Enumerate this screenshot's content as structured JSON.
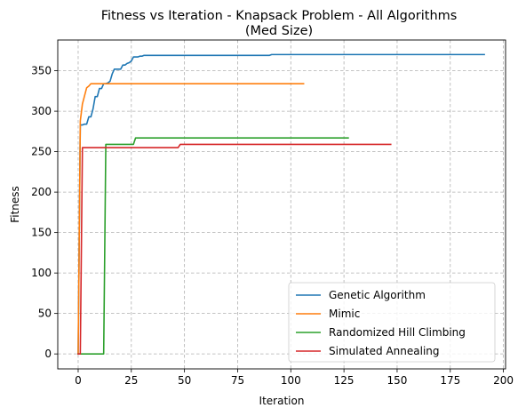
{
  "chart_data": {
    "type": "line",
    "title_line1": "Fitness vs Iteration - Knapsack Problem - All Algorithms",
    "title_line2": "(Med Size)",
    "xlabel": "Iteration",
    "ylabel": "Fitness",
    "xlim": [
      -9.6,
      201
    ],
    "ylim": [
      -18.5,
      388
    ],
    "xticks": [
      0,
      25,
      50,
      75,
      100,
      125,
      150,
      175,
      200
    ],
    "yticks": [
      0,
      50,
      100,
      150,
      200,
      250,
      300,
      350
    ],
    "grid": true,
    "legend_position": "lower-right",
    "series": [
      {
        "name": "Genetic Algorithm",
        "color": "#1f77b4",
        "x": [
          0,
          1,
          2,
          3,
          4,
          5,
          6,
          7,
          8,
          9,
          10,
          11,
          12,
          13,
          14,
          15,
          16,
          17,
          18,
          19,
          20,
          21,
          22,
          23,
          24,
          25,
          26,
          27,
          28,
          29,
          30,
          31,
          32,
          33,
          90,
          91,
          191
        ],
        "y": [
          0,
          283,
          283,
          284,
          284,
          293,
          293,
          303,
          318,
          318,
          328,
          328,
          334,
          334,
          335,
          337,
          346,
          352,
          352,
          352,
          352,
          357,
          357,
          359,
          360,
          362,
          367,
          367,
          367,
          368,
          368,
          369,
          369,
          369,
          369,
          370,
          370
        ]
      },
      {
        "name": "Mimic",
        "color": "#ff7f0e",
        "x": [
          0,
          1,
          2,
          3,
          4,
          5,
          6,
          7,
          106
        ],
        "y": [
          0,
          288,
          309,
          319,
          329,
          331,
          334,
          334,
          334
        ]
      },
      {
        "name": "Randomized Hill Climbing",
        "color": "#2ca02c",
        "x": [
          0,
          12,
          13,
          26,
          27,
          127
        ],
        "y": [
          0,
          0,
          259,
          259,
          267,
          267
        ]
      },
      {
        "name": "Simulated Annealing",
        "color": "#d62728",
        "x": [
          0,
          1,
          2,
          3,
          47,
          48,
          147
        ],
        "y": [
          0,
          0,
          255,
          255,
          255,
          259,
          259
        ]
      }
    ]
  }
}
